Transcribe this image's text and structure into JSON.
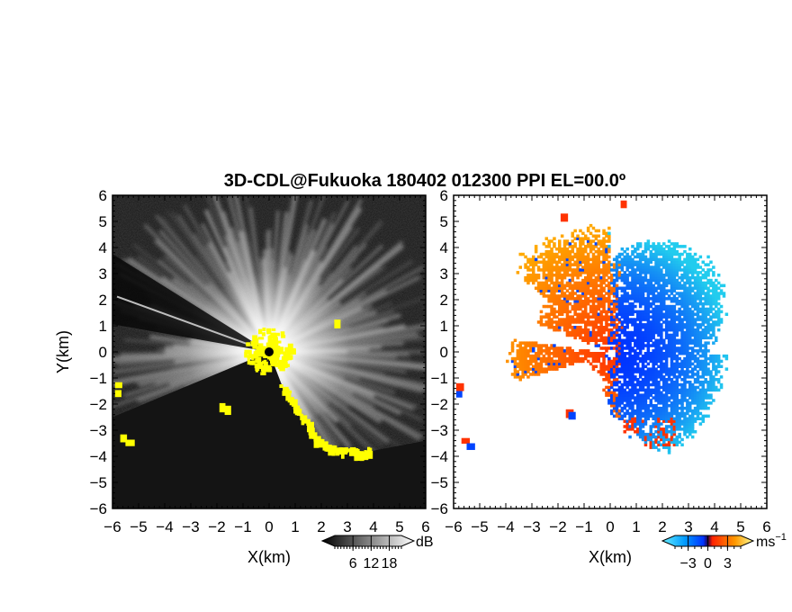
{
  "chart_data": [
    {
      "type": "heatmap",
      "title": "3D-CDL@Fukuoka 180402 012300 PPI EL=00.0º",
      "xlabel": "X(km)",
      "ylabel": "Y(km)",
      "xlim": [
        -6,
        6
      ],
      "ylim": [
        -6,
        6
      ],
      "xticks": [
        "-6",
        "-5",
        "-4",
        "-3",
        "-2",
        "-1",
        "0",
        "1",
        "2",
        "3",
        "4",
        "5",
        "6"
      ],
      "yticks": [
        "6",
        "5",
        "4",
        "3",
        "2",
        "1",
        "0",
        "-1",
        "-2",
        "-3",
        "-4",
        "-5",
        "-6"
      ],
      "colorbar": {
        "label": "dB",
        "ticks": [
          "6",
          "12",
          "18"
        ],
        "range": [
          0,
          22
        ]
      },
      "colors": {
        "background": "#141414",
        "high": "#ffffff",
        "mask": "#ffff00"
      },
      "features": {
        "blocked_sector_deg": [
          148,
          170
        ],
        "blocked_sector2_deg": [
          197,
          215
        ],
        "beam_deg": 160,
        "mask_edge_points": [
          [
            0.5,
            -1.3
          ],
          [
            1.0,
            -2.1
          ],
          [
            1.5,
            -2.8
          ],
          [
            1.8,
            -3.4
          ],
          [
            2.2,
            -3.6
          ],
          [
            2.7,
            -3.8
          ],
          [
            3.3,
            -3.8
          ],
          [
            3.5,
            -4.0
          ],
          [
            3.9,
            -3.8
          ]
        ]
      }
    },
    {
      "type": "heatmap",
      "xlabel": "X(km)",
      "xlim": [
        -6,
        6
      ],
      "ylim": [
        -6,
        6
      ],
      "xticks": [
        "-6",
        "-5",
        "-4",
        "-3",
        "-2",
        "-1",
        "0",
        "1",
        "2",
        "3",
        "4",
        "5",
        "6"
      ],
      "yticks": [
        "6",
        "5",
        "4",
        "3",
        "2",
        "1",
        "0",
        "-1",
        "-2",
        "-3",
        "-4",
        "-5",
        "-6"
      ],
      "colorbar": {
        "label": "ms",
        "label_sup": "−1",
        "ticks": [
          "−3",
          "0",
          "3"
        ],
        "range": [
          -5,
          5
        ]
      },
      "colors": {
        "negative": "#0033ff",
        "negative_far": "#22ccee",
        "positive": "#ff3300",
        "positive_far": "#ffaa00",
        "edge_noise": "#0044ff"
      }
    }
  ]
}
